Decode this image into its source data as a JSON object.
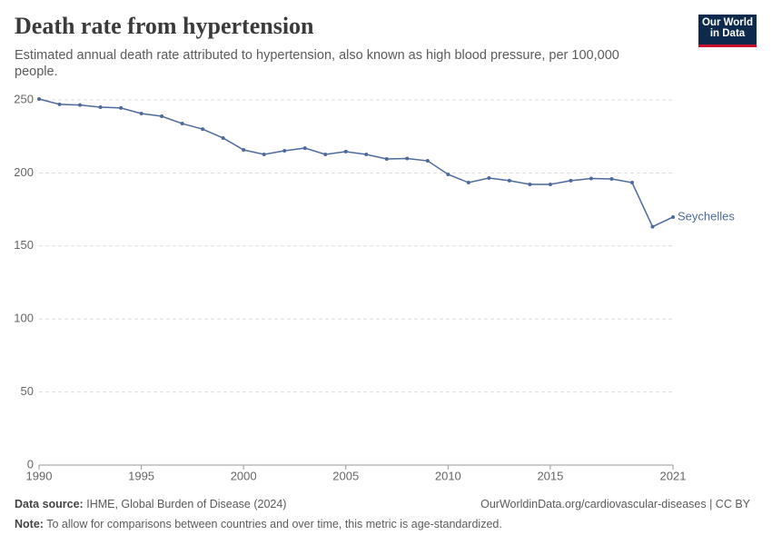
{
  "chart_data": {
    "type": "line",
    "title": "Death rate from hypertension",
    "subtitle": "Estimated annual death rate attributed to hypertension, also known as high blood pressure, per 100,000 people.",
    "x": [
      1990,
      1991,
      1992,
      1993,
      1994,
      1995,
      1996,
      1997,
      1998,
      1999,
      2000,
      2001,
      2002,
      2003,
      2004,
      2005,
      2006,
      2007,
      2008,
      2009,
      2010,
      2011,
      2012,
      2013,
      2014,
      2015,
      2016,
      2017,
      2018,
      2019,
      2020,
      2021
    ],
    "series": [
      {
        "name": "Seychelles",
        "color": "#4c6a9c",
        "values": [
          250.6,
          247,
          246.5,
          245,
          244.5,
          240.7,
          238.8,
          233.8,
          230,
          223.9,
          215.8,
          212.7,
          215.2,
          217,
          212.7,
          214.6,
          212.7,
          209.6,
          209.9,
          208.3,
          199,
          193.4,
          196.5,
          194.7,
          192.2,
          192.2,
          194.7,
          196.2,
          195.9,
          193.4,
          163.2,
          169.8
        ]
      }
    ],
    "xlim": [
      1990,
      2021
    ],
    "xticks": [
      1990,
      1995,
      2000,
      2005,
      2010,
      2015,
      2021
    ],
    "ylim": [
      0,
      250
    ],
    "yticks": [
      0,
      50,
      100,
      150,
      200,
      250
    ],
    "grid": true
  },
  "logo": [
    "Our World",
    "in Data"
  ],
  "footer": {
    "source_label": "Data source:",
    "source": "IHME, Global Burden of Disease (2024)",
    "url": "OurWorldinData.org/cardiovascular-diseases | CC BY",
    "note_label": "Note:",
    "note": "To allow for comparisons between countries and over time, this metric is age-standardized."
  }
}
